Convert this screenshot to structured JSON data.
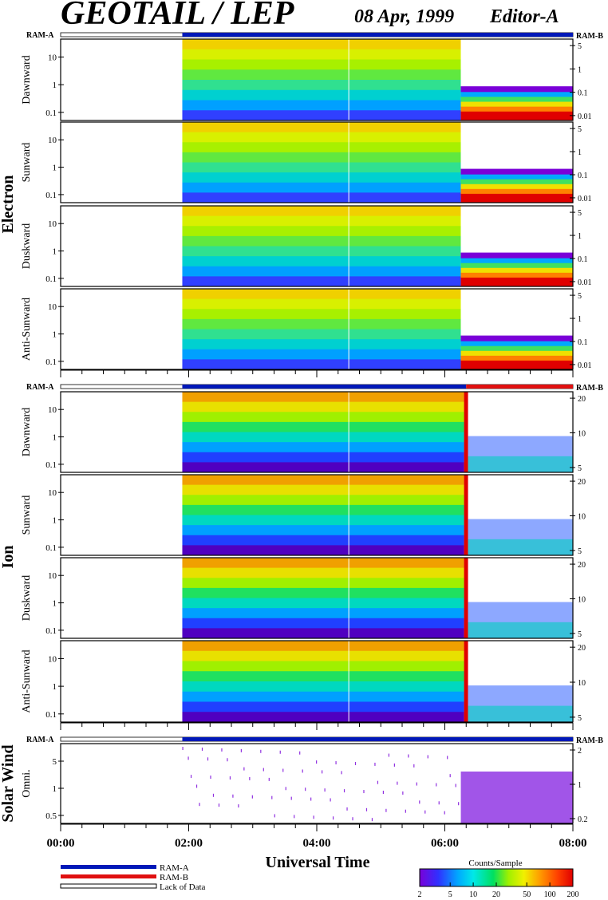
{
  "header": {
    "title": "GEOTAIL / LEP",
    "date": "08 Apr, 1999",
    "editor": "Editor-A"
  },
  "colors": {
    "ram_a": "#0018b8",
    "ram_b": "#e01010",
    "lack_of_data": "#ffffff",
    "spectrum": [
      "#7a00d8",
      "#3030ff",
      "#00a8ff",
      "#00e8e8",
      "#00e060",
      "#a0f000",
      "#f0f000",
      "#ffa000",
      "#ff4000",
      "#e00000"
    ]
  },
  "groups": [
    {
      "id": "electron",
      "label": "Electron"
    },
    {
      "id": "ion",
      "label": "Ion"
    },
    {
      "id": "solarwind",
      "label": "Solar Wind"
    }
  ],
  "mode_labels": {
    "left": "RAM-A",
    "right": "RAM-B"
  },
  "xaxis": {
    "title": "Universal Time",
    "range_hours": [
      0,
      8
    ],
    "tick_labels": [
      "00:00",
      "02:00",
      "04:00",
      "06:00",
      "08:00"
    ],
    "minor_tick_minutes": 20
  },
  "legend": {
    "mode_items": [
      {
        "label": "RAM-A",
        "color": "#0018b8"
      },
      {
        "label": "RAM-B",
        "color": "#e01010"
      },
      {
        "label": "Lack of Data",
        "color": "#ffffff"
      }
    ],
    "colorbar_title": "Counts/Sample",
    "colorbar_ticks": [
      "2",
      "5",
      "10",
      "20",
      "50",
      "100",
      "200"
    ]
  },
  "chart_data": {
    "type": "heatmap",
    "data_start_time": "01:54",
    "mode_segments": [
      {
        "panel_group": "electron",
        "segments": [
          [
            "01:54",
            "08:00",
            "RAM-A"
          ]
        ]
      },
      {
        "panel_group": "ion",
        "segments": [
          [
            "01:54",
            "06:20",
            "RAM-A"
          ],
          [
            "06:20",
            "08:00",
            "RAM-B"
          ]
        ]
      },
      {
        "panel_group": "solarwind",
        "segments": [
          [
            "01:54",
            "08:00",
            "RAM-A"
          ]
        ]
      }
    ],
    "panels": [
      {
        "group": "electron",
        "label": "Dawnward",
        "left_ticks": [
          "10",
          "1",
          "0.1"
        ],
        "right_ticks": [
          "5",
          "1",
          "0.1",
          "0.01"
        ]
      },
      {
        "group": "electron",
        "label": "Sunward",
        "left_ticks": [
          "10",
          "1",
          "0.1"
        ],
        "right_ticks": [
          "5",
          "1",
          "0.1",
          "0.01"
        ]
      },
      {
        "group": "electron",
        "label": "Duskward",
        "left_ticks": [
          "10",
          "1",
          "0.1"
        ],
        "right_ticks": [
          "5",
          "1",
          "0.1",
          "0.01"
        ]
      },
      {
        "group": "electron",
        "label": "Anti-Sunward",
        "left_ticks": [
          "10",
          "1",
          "0.1"
        ],
        "right_ticks": [
          "5",
          "1",
          "0.1",
          "0.01"
        ]
      },
      {
        "group": "ion",
        "label": "Dawnward",
        "left_ticks": [
          "10",
          "1",
          "0.1"
        ],
        "right_ticks": [
          "20",
          "10",
          "5"
        ]
      },
      {
        "group": "ion",
        "label": "Sunward",
        "left_ticks": [
          "10",
          "1",
          "0.1"
        ],
        "right_ticks": [
          "20",
          "10",
          "5"
        ]
      },
      {
        "group": "ion",
        "label": "Duskward",
        "left_ticks": [
          "10",
          "1",
          "0.1"
        ],
        "right_ticks": [
          "20",
          "10",
          "5"
        ]
      },
      {
        "group": "ion",
        "label": "Anti-Sunward",
        "left_ticks": [
          "10",
          "1",
          "0.1"
        ],
        "right_ticks": [
          "20",
          "10",
          "5"
        ]
      },
      {
        "group": "solarwind",
        "label": "Omni.",
        "left_ticks": [
          "5",
          "1",
          "0.5"
        ],
        "right_ticks": [
          "2",
          "1",
          "0.2"
        ]
      }
    ]
  }
}
